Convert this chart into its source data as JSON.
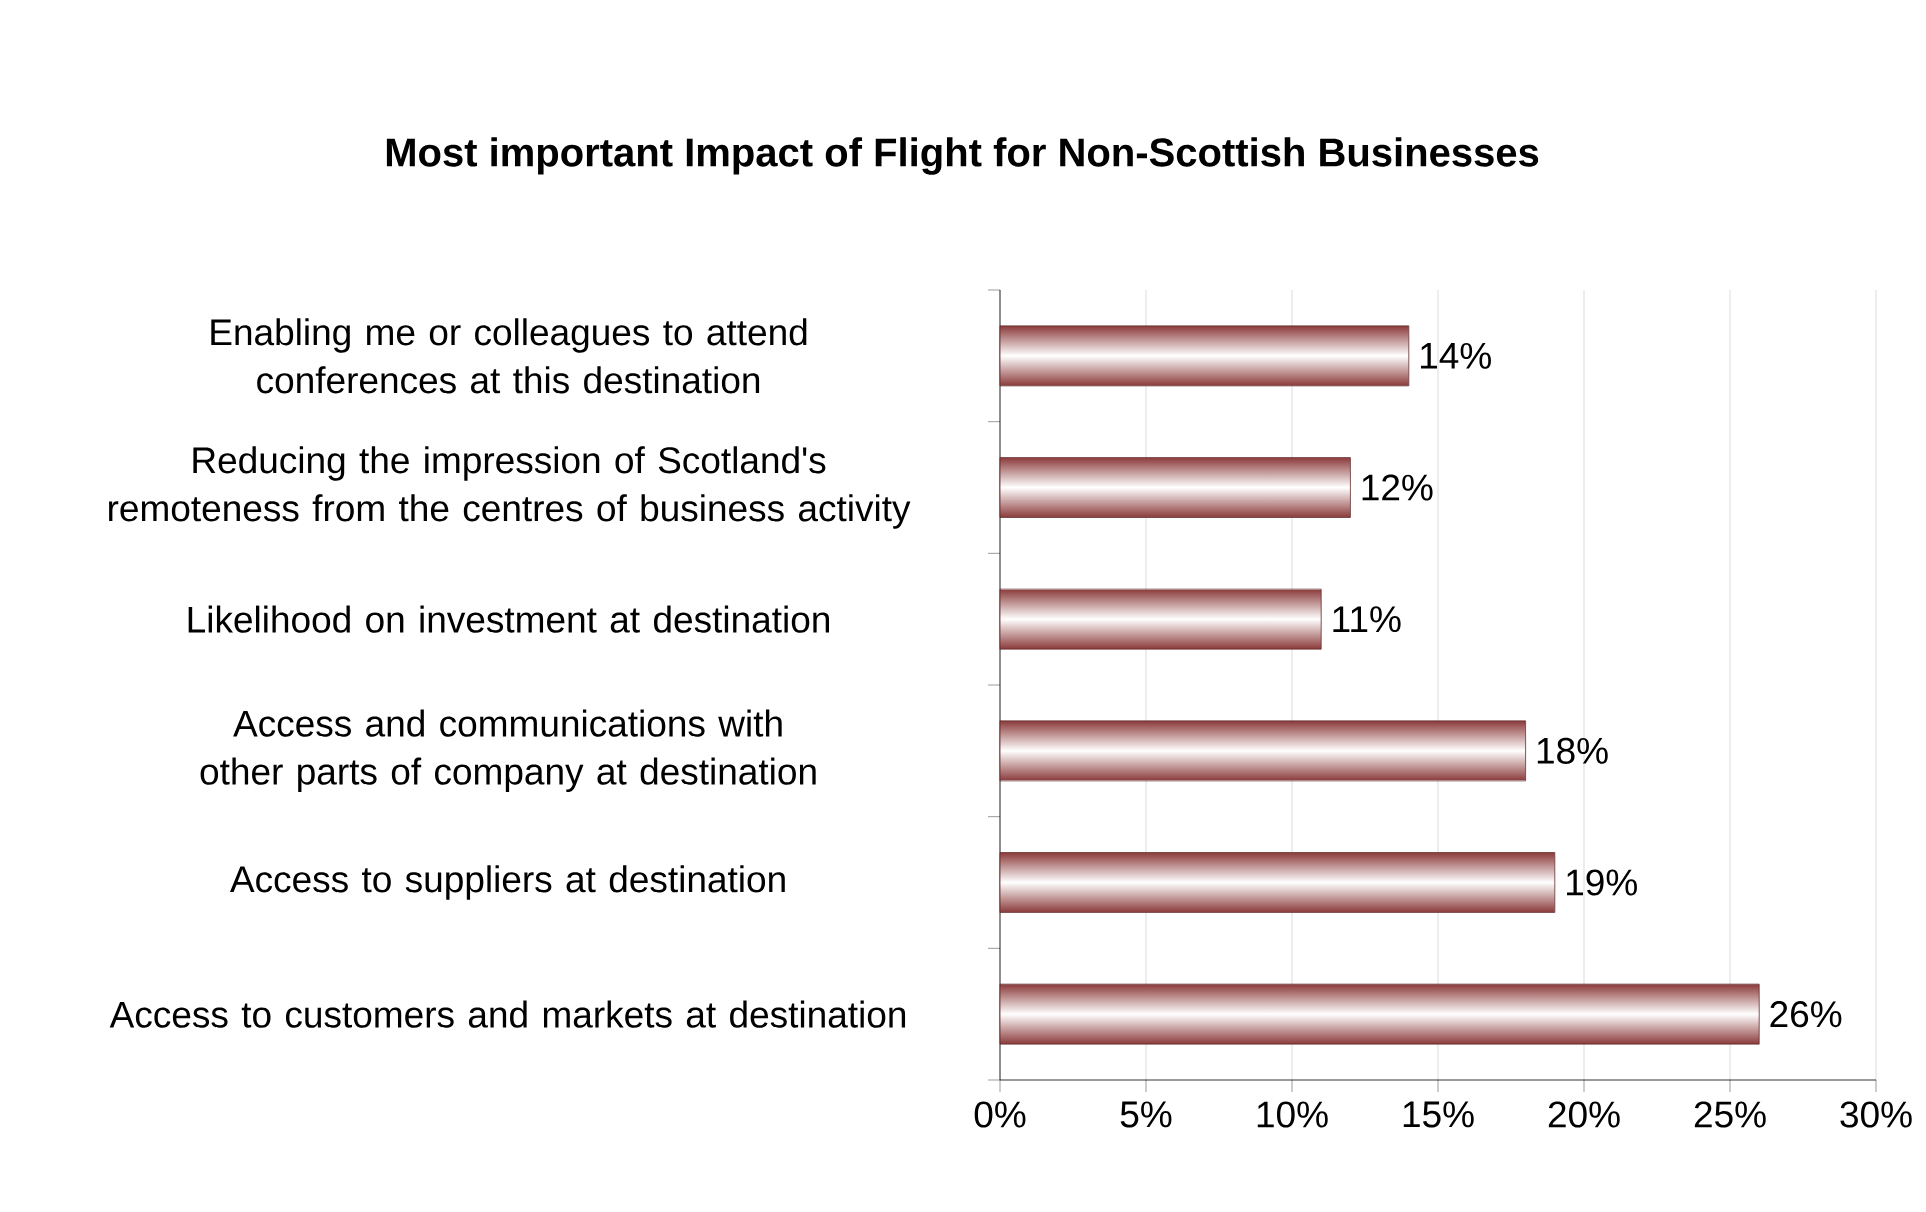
{
  "chart_data": {
    "type": "bar",
    "orientation": "horizontal",
    "title": "Most important Impact of Flight for Non-Scottish  Businesses",
    "categories": [
      "Enabling me or colleagues to attend conferences at this destination",
      "Reducing the impression of Scotland's remoteness from the centres of business activity",
      "Likelihood on investment at destination",
      "Access and communications with other parts of company at destination",
      "Access to suppliers at destination",
      "Access to customers and markets at destination"
    ],
    "values": [
      14,
      12,
      11,
      18,
      19,
      26
    ],
    "value_labels": [
      "14%",
      "12%",
      "11%",
      "18%",
      "19%",
      "26%"
    ],
    "color": "#8b3a3a",
    "xlim": [
      0,
      30
    ],
    "xticks": [
      {
        "value": 0,
        "label": "0%"
      },
      {
        "value": 5,
        "label": "5%"
      },
      {
        "value": 10,
        "label": "10%"
      },
      {
        "value": 15,
        "label": "15%"
      },
      {
        "value": 20,
        "label": "20%"
      },
      {
        "value": 25,
        "label": "25%"
      },
      {
        "value": 30,
        "label": "30%"
      }
    ],
    "grid": "x"
  }
}
